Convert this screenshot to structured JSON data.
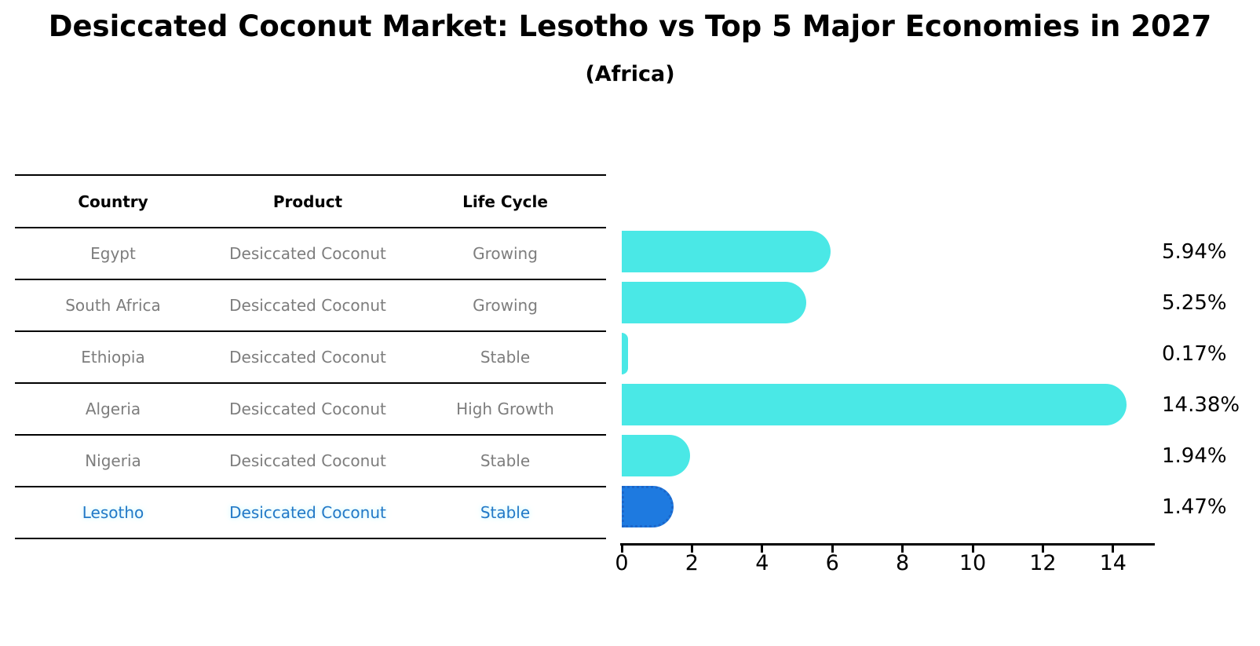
{
  "title": "Desiccated Coconut Market: Lesotho vs Top 5 Major Economies in 2027",
  "subtitle": "(Africa)",
  "table": {
    "columns": [
      "Country",
      "Product",
      "Life Cycle"
    ],
    "rows": [
      {
        "country": "Egypt",
        "product": "Desiccated Coconut",
        "life_cycle": "Growing",
        "highlight": false
      },
      {
        "country": "South Africa",
        "product": "Desiccated Coconut",
        "life_cycle": "Growing",
        "highlight": false
      },
      {
        "country": "Ethiopia",
        "product": "Desiccated Coconut",
        "life_cycle": "Stable",
        "highlight": false
      },
      {
        "country": "Algeria",
        "product": "Desiccated Coconut",
        "life_cycle": "High Growth",
        "highlight": false
      },
      {
        "country": "Nigeria",
        "product": "Desiccated Coconut",
        "life_cycle": "Stable",
        "highlight": false
      },
      {
        "country": "Lesotho",
        "product": "Desiccated Coconut",
        "life_cycle": "Stable",
        "highlight": true
      }
    ]
  },
  "chart_data": {
    "type": "bar",
    "orientation": "horizontal",
    "title": "Desiccated Coconut Market: Lesotho vs Top 5 Major Economies in 2027",
    "subtitle": "(Africa)",
    "categories": [
      "Egypt",
      "South Africa",
      "Ethiopia",
      "Algeria",
      "Nigeria",
      "Lesotho"
    ],
    "values": [
      5.94,
      5.25,
      0.17,
      14.38,
      1.94,
      1.47
    ],
    "value_labels": [
      "5.94%",
      "5.25%",
      "0.17%",
      "14.38%",
      "1.94%",
      "1.47%"
    ],
    "unit": "percent",
    "xlabel": "",
    "ylabel": "",
    "xlim": [
      0,
      15.2
    ],
    "xticks": [
      0,
      2,
      4,
      6,
      8,
      10,
      12,
      14
    ],
    "grid": false,
    "legend": false,
    "highlight_category": "Lesotho",
    "colors": {
      "bar": "#4AE8E6",
      "highlight_bar": "#1E7AE0",
      "highlight_bar_border": "#1C66C9",
      "highlight_text": "#2279C7",
      "table_header_text": "#000000",
      "table_row_text": "#7D7D7D",
      "axis": "#000000",
      "background": "#FFFFFF"
    }
  }
}
